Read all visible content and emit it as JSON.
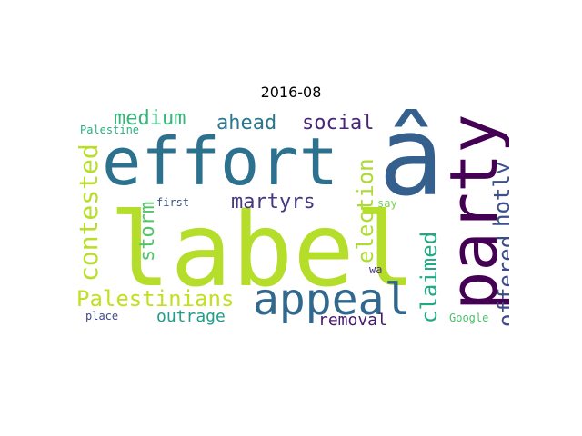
{
  "title": "2016-08",
  "words": [
    {
      "text": "label",
      "color": "#b5de2b"
    },
    {
      "text": "effort",
      "color": "#2c728e"
    },
    {
      "text": "â",
      "color": "#355f8d"
    },
    {
      "text": "party",
      "color": "#440154"
    },
    {
      "text": "appeal",
      "color": "#31688e"
    },
    {
      "text": "contested",
      "color": "#b8de29"
    },
    {
      "text": "Palestinians",
      "color": "#c2df23"
    },
    {
      "text": "election",
      "color": "#addc30"
    },
    {
      "text": "claimed",
      "color": "#22a884"
    },
    {
      "text": "offered",
      "color": "#3e4a89"
    },
    {
      "text": "hotly",
      "color": "#3b518b"
    },
    {
      "text": "medium",
      "color": "#35b779"
    },
    {
      "text": "ahead",
      "color": "#2a788e"
    },
    {
      "text": "social",
      "color": "#482677"
    },
    {
      "text": "martyrs",
      "color": "#453781"
    },
    {
      "text": "storm",
      "color": "#52c569"
    },
    {
      "text": "outrage",
      "color": "#1f9e89"
    },
    {
      "text": "removal",
      "color": "#481a6c"
    },
    {
      "text": "Palestine",
      "color": "#2ab07f"
    },
    {
      "text": "first",
      "color": "#3b528b"
    },
    {
      "text": "say",
      "color": "#7ad151"
    },
    {
      "text": "wa",
      "color": "#46327e"
    },
    {
      "text": "place",
      "color": "#3e4989"
    },
    {
      "text": "Google",
      "color": "#4ac16d"
    }
  ]
}
